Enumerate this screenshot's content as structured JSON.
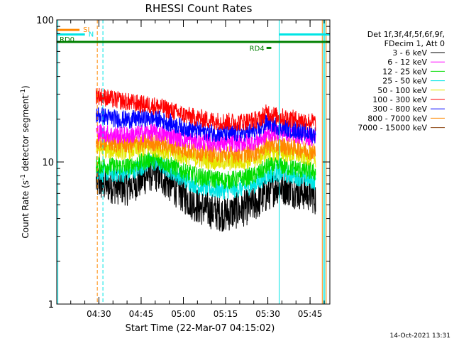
{
  "chart_data": {
    "type": "line",
    "title": "RHESSI Count Rates",
    "xlabel": "Start Time (22-Mar-07 04:15:02)",
    "ylabel_main": "Count Rate (s",
    "ylabel_sup1": "-1",
    "ylabel_mid": " detector segment",
    "ylabel_sup2": "-1",
    "ylabel_end": ")",
    "yscale": "log",
    "ylim": [
      1,
      100
    ],
    "xlim_minutes": [
      0,
      97
    ],
    "xticks": [
      {
        "label": "04:30",
        "min": 14.97
      },
      {
        "label": "04:45",
        "min": 29.97
      },
      {
        "label": "05:00",
        "min": 44.97
      },
      {
        "label": "05:15",
        "min": 59.97
      },
      {
        "label": "05:30",
        "min": 74.97
      },
      {
        "label": "05:45",
        "min": 89.97
      }
    ],
    "yticks": [
      {
        "label": "1",
        "value": 1
      },
      {
        "label": "10",
        "value": 10
      },
      {
        "label": "100",
        "value": 100
      }
    ],
    "legend": {
      "placement": "right",
      "header": [
        "Det 1f,3f,4f,5f,6f,9f,",
        "FDecim 1, Att 0"
      ],
      "entries": [
        {
          "label": "3 - 6 keV",
          "color": "#000000"
        },
        {
          "label": "6 - 12 keV",
          "color": "#ff00ff"
        },
        {
          "label": "12 - 25 keV",
          "color": "#00dd00"
        },
        {
          "label": "25 - 50 keV",
          "color": "#00e5e5"
        },
        {
          "label": "50 - 100 keV",
          "color": "#e6e600"
        },
        {
          "label": "100 - 300 keV",
          "color": "#ff0000"
        },
        {
          "label": "300 - 800 keV",
          "color": "#0000ff"
        },
        {
          "label": "800 - 7000 keV",
          "color": "#ff8800"
        },
        {
          "label": "7000 - 15000 keV",
          "color": "#8b4513"
        }
      ]
    },
    "series": [
      {
        "name": "3 - 6 keV",
        "color": "#000000",
        "x_min": [
          14,
          20,
          25,
          30,
          33,
          36,
          40,
          45,
          50,
          55,
          60,
          65,
          70,
          72,
          75,
          78,
          82,
          86,
          90,
          92
        ],
        "y": [
          7.2,
          6.8,
          6.6,
          7.5,
          8.3,
          8.2,
          7.0,
          5.8,
          4.9,
          4.5,
          4.3,
          4.6,
          5.0,
          5.4,
          6.0,
          6.8,
          6.6,
          6.2,
          6.0,
          5.6
        ]
      },
      {
        "name": "25 - 50 keV",
        "color": "#00e5e5",
        "x_min": [
          14,
          20,
          25,
          30,
          33,
          36,
          40,
          45,
          50,
          55,
          60,
          65,
          70,
          72,
          75,
          78,
          82,
          86,
          90,
          92
        ],
        "y": [
          8.6,
          8.3,
          8.3,
          9.2,
          10.0,
          9.8,
          8.8,
          7.6,
          6.8,
          6.4,
          6.3,
          6.5,
          6.9,
          7.3,
          8.1,
          8.4,
          8.2,
          7.8,
          7.5,
          7.3
        ]
      },
      {
        "name": "12 - 25 keV",
        "color": "#00dd00",
        "x_min": [
          14,
          20,
          25,
          30,
          33,
          36,
          40,
          45,
          50,
          55,
          60,
          65,
          70,
          72,
          75,
          78,
          82,
          86,
          90,
          92
        ],
        "y": [
          9.6,
          9.3,
          9.3,
          9.9,
          10.5,
          10.3,
          9.5,
          8.6,
          7.9,
          7.6,
          7.4,
          7.6,
          8.0,
          8.4,
          9.3,
          9.4,
          9.2,
          8.9,
          8.6,
          8.4
        ]
      },
      {
        "name": "50 - 100 keV",
        "color": "#e6e600",
        "x_min": [
          14,
          20,
          25,
          30,
          33,
          36,
          40,
          45,
          50,
          55,
          60,
          65,
          70,
          72,
          75,
          78,
          82,
          86,
          90,
          92
        ],
        "y": [
          12.5,
          12.0,
          12.0,
          12.3,
          12.6,
          12.4,
          11.8,
          11.0,
          10.5,
          10.2,
          10.0,
          10.1,
          10.4,
          10.8,
          11.8,
          11.7,
          11.5,
          11.2,
          10.9,
          10.6
        ]
      },
      {
        "name": "800 - 7000 keV",
        "color": "#ff8800",
        "x_min": [
          14,
          20,
          25,
          30,
          33,
          36,
          40,
          45,
          50,
          55,
          60,
          65,
          70,
          72,
          75,
          78,
          82,
          86,
          90,
          92
        ],
        "y": [
          14.0,
          13.5,
          13.3,
          13.5,
          13.8,
          13.6,
          13.0,
          12.3,
          11.8,
          11.5,
          11.3,
          11.4,
          11.6,
          12.0,
          13.2,
          13.1,
          12.8,
          12.4,
          12.0,
          11.7
        ]
      },
      {
        "name": "6 - 12 keV",
        "color": "#ff00ff",
        "x_min": [
          14,
          20,
          25,
          30,
          33,
          36,
          40,
          45,
          50,
          55,
          60,
          65,
          70,
          72,
          75,
          78,
          82,
          86,
          90,
          92
        ],
        "y": [
          16.3,
          15.5,
          15.4,
          15.8,
          16.2,
          16.0,
          15.3,
          14.5,
          13.9,
          13.7,
          13.5,
          13.6,
          13.9,
          14.3,
          15.8,
          16.3,
          16.0,
          15.5,
          15.0,
          14.6
        ]
      },
      {
        "name": "300 - 800 keV",
        "color": "#0000ff",
        "x_min": [
          14,
          20,
          25,
          30,
          33,
          36,
          40,
          45,
          50,
          55,
          60,
          65,
          70,
          72,
          75,
          78,
          82,
          86,
          90,
          92
        ],
        "y": [
          21.5,
          20.3,
          19.8,
          20.2,
          20.4,
          20.0,
          18.9,
          17.5,
          16.7,
          16.1,
          15.8,
          15.9,
          16.4,
          16.8,
          19.2,
          18.0,
          17.2,
          16.6,
          15.9,
          15.4
        ]
      },
      {
        "name": "100 - 300 keV",
        "color": "#ff0000",
        "x_min": [
          14,
          20,
          25,
          30,
          33,
          36,
          40,
          45,
          50,
          55,
          60,
          65,
          70,
          72,
          75,
          78,
          82,
          86,
          90,
          92
        ],
        "y": [
          29.5,
          27.5,
          26.5,
          25.5,
          25.2,
          24.6,
          23.2,
          21.5,
          20.4,
          19.6,
          19.2,
          19.1,
          19.6,
          20.0,
          22.5,
          21.0,
          20.4,
          19.8,
          19.3,
          18.9
        ]
      }
    ],
    "vertical_lines": [
      {
        "min": 14.4,
        "color": "#ff8800",
        "style": "dashed"
      },
      {
        "min": 16.4,
        "color": "#00e5e5",
        "style": "dashed"
      },
      {
        "min": 79.0,
        "color": "#00e5e5",
        "style": "solid"
      },
      {
        "min": 94.3,
        "color": "#ff8800",
        "style": "solid"
      },
      {
        "min": 94.8,
        "color": "#00e5e5",
        "style": "solid"
      },
      {
        "min": 95.2,
        "color": "#00e5e5",
        "style": "solid"
      },
      {
        "min": 95.7,
        "color": "#ff8800",
        "style": "solid"
      },
      {
        "min": 0.4,
        "color": "#00e5e5",
        "style": "solid"
      }
    ],
    "flag_bars": [
      {
        "label": "SI",
        "color": "#ff8800",
        "x_min": [
          0,
          8.1
        ],
        "y": 85.0,
        "label_color": "#ff8800"
      },
      {
        "label": "N",
        "color": "#00e5e5",
        "x_min": [
          0,
          10.0
        ],
        "y": 79.0,
        "label_color": "#00e5e5"
      },
      {
        "label": "N",
        "color": "#00e5e5",
        "x_min": [
          79.0,
          97.0
        ],
        "y": 79.0,
        "label_color": "#00e5e5"
      },
      {
        "label": "RD0",
        "color": "#008000",
        "x_min": [
          0,
          97.0
        ],
        "y": 70.0,
        "label_color": "#008000"
      },
      {
        "label": "RD4",
        "color": "#008000",
        "x_min": [
          74.5,
          76.2
        ],
        "y": 63.5,
        "label_color": "#008000"
      }
    ],
    "timestamp": "14-Oct-2021 13:31"
  }
}
